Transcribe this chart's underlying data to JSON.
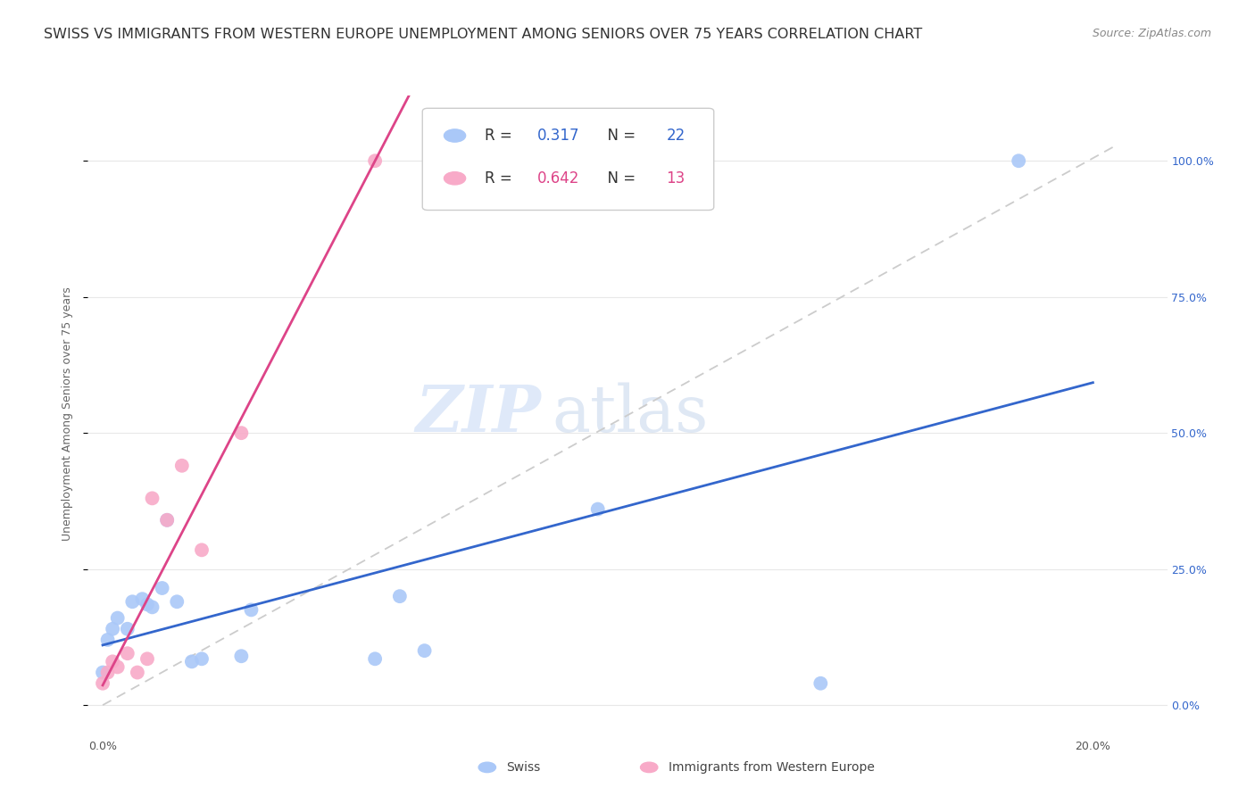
{
  "title": "SWISS VS IMMIGRANTS FROM WESTERN EUROPE UNEMPLOYMENT AMONG SENIORS OVER 75 YEARS CORRELATION CHART",
  "source": "Source: ZipAtlas.com",
  "xlabel_tick_vals": [
    0.0,
    0.05,
    0.1,
    0.15,
    0.2
  ],
  "xlabel_ticks": [
    "0.0%",
    "",
    "",
    "",
    "20.0%"
  ],
  "ylabel": "Unemployment Among Seniors over 75 years",
  "ylabel_tick_vals": [
    0.0,
    0.25,
    0.5,
    0.75,
    1.0
  ],
  "ylabel_ticks_right": [
    "0.0%",
    "25.0%",
    "50.0%",
    "75.0%",
    "100.0%"
  ],
  "xlim": [
    -0.003,
    0.215
  ],
  "ylim": [
    -0.05,
    1.12
  ],
  "swiss_R": 0.317,
  "swiss_N": 22,
  "immigrant_R": 0.642,
  "immigrant_N": 13,
  "swiss_color": "#aac8f8",
  "immigrant_color": "#f8aac8",
  "swiss_line_color": "#3366cc",
  "immigrant_line_color": "#dd4488",
  "diagonal_color": "#cccccc",
  "swiss_points_x": [
    0.0,
    0.001,
    0.002,
    0.003,
    0.005,
    0.006,
    0.008,
    0.009,
    0.01,
    0.012,
    0.013,
    0.015,
    0.018,
    0.02,
    0.028,
    0.03,
    0.055,
    0.06,
    0.065,
    0.1,
    0.145,
    0.185
  ],
  "swiss_points_y": [
    0.06,
    0.12,
    0.14,
    0.16,
    0.14,
    0.19,
    0.195,
    0.185,
    0.18,
    0.215,
    0.34,
    0.19,
    0.08,
    0.085,
    0.09,
    0.175,
    0.085,
    0.2,
    0.1,
    0.36,
    0.04,
    1.0
  ],
  "immigrant_points_x": [
    0.0,
    0.001,
    0.002,
    0.003,
    0.005,
    0.007,
    0.009,
    0.01,
    0.013,
    0.016,
    0.02,
    0.028,
    0.055
  ],
  "immigrant_points_y": [
    0.04,
    0.06,
    0.08,
    0.07,
    0.095,
    0.06,
    0.085,
    0.38,
    0.34,
    0.44,
    0.285,
    0.5,
    1.0
  ],
  "legend_swiss_label": "Swiss",
  "legend_immigrant_label": "Immigrants from Western Europe",
  "watermark_zip": "ZIP",
  "watermark_atlas": "atlas",
  "grid_color": "#e8e8e8",
  "background_color": "#ffffff",
  "title_fontsize": 11.5,
  "axis_label_fontsize": 9,
  "tick_fontsize": 9,
  "legend_fontsize": 12,
  "source_fontsize": 9
}
